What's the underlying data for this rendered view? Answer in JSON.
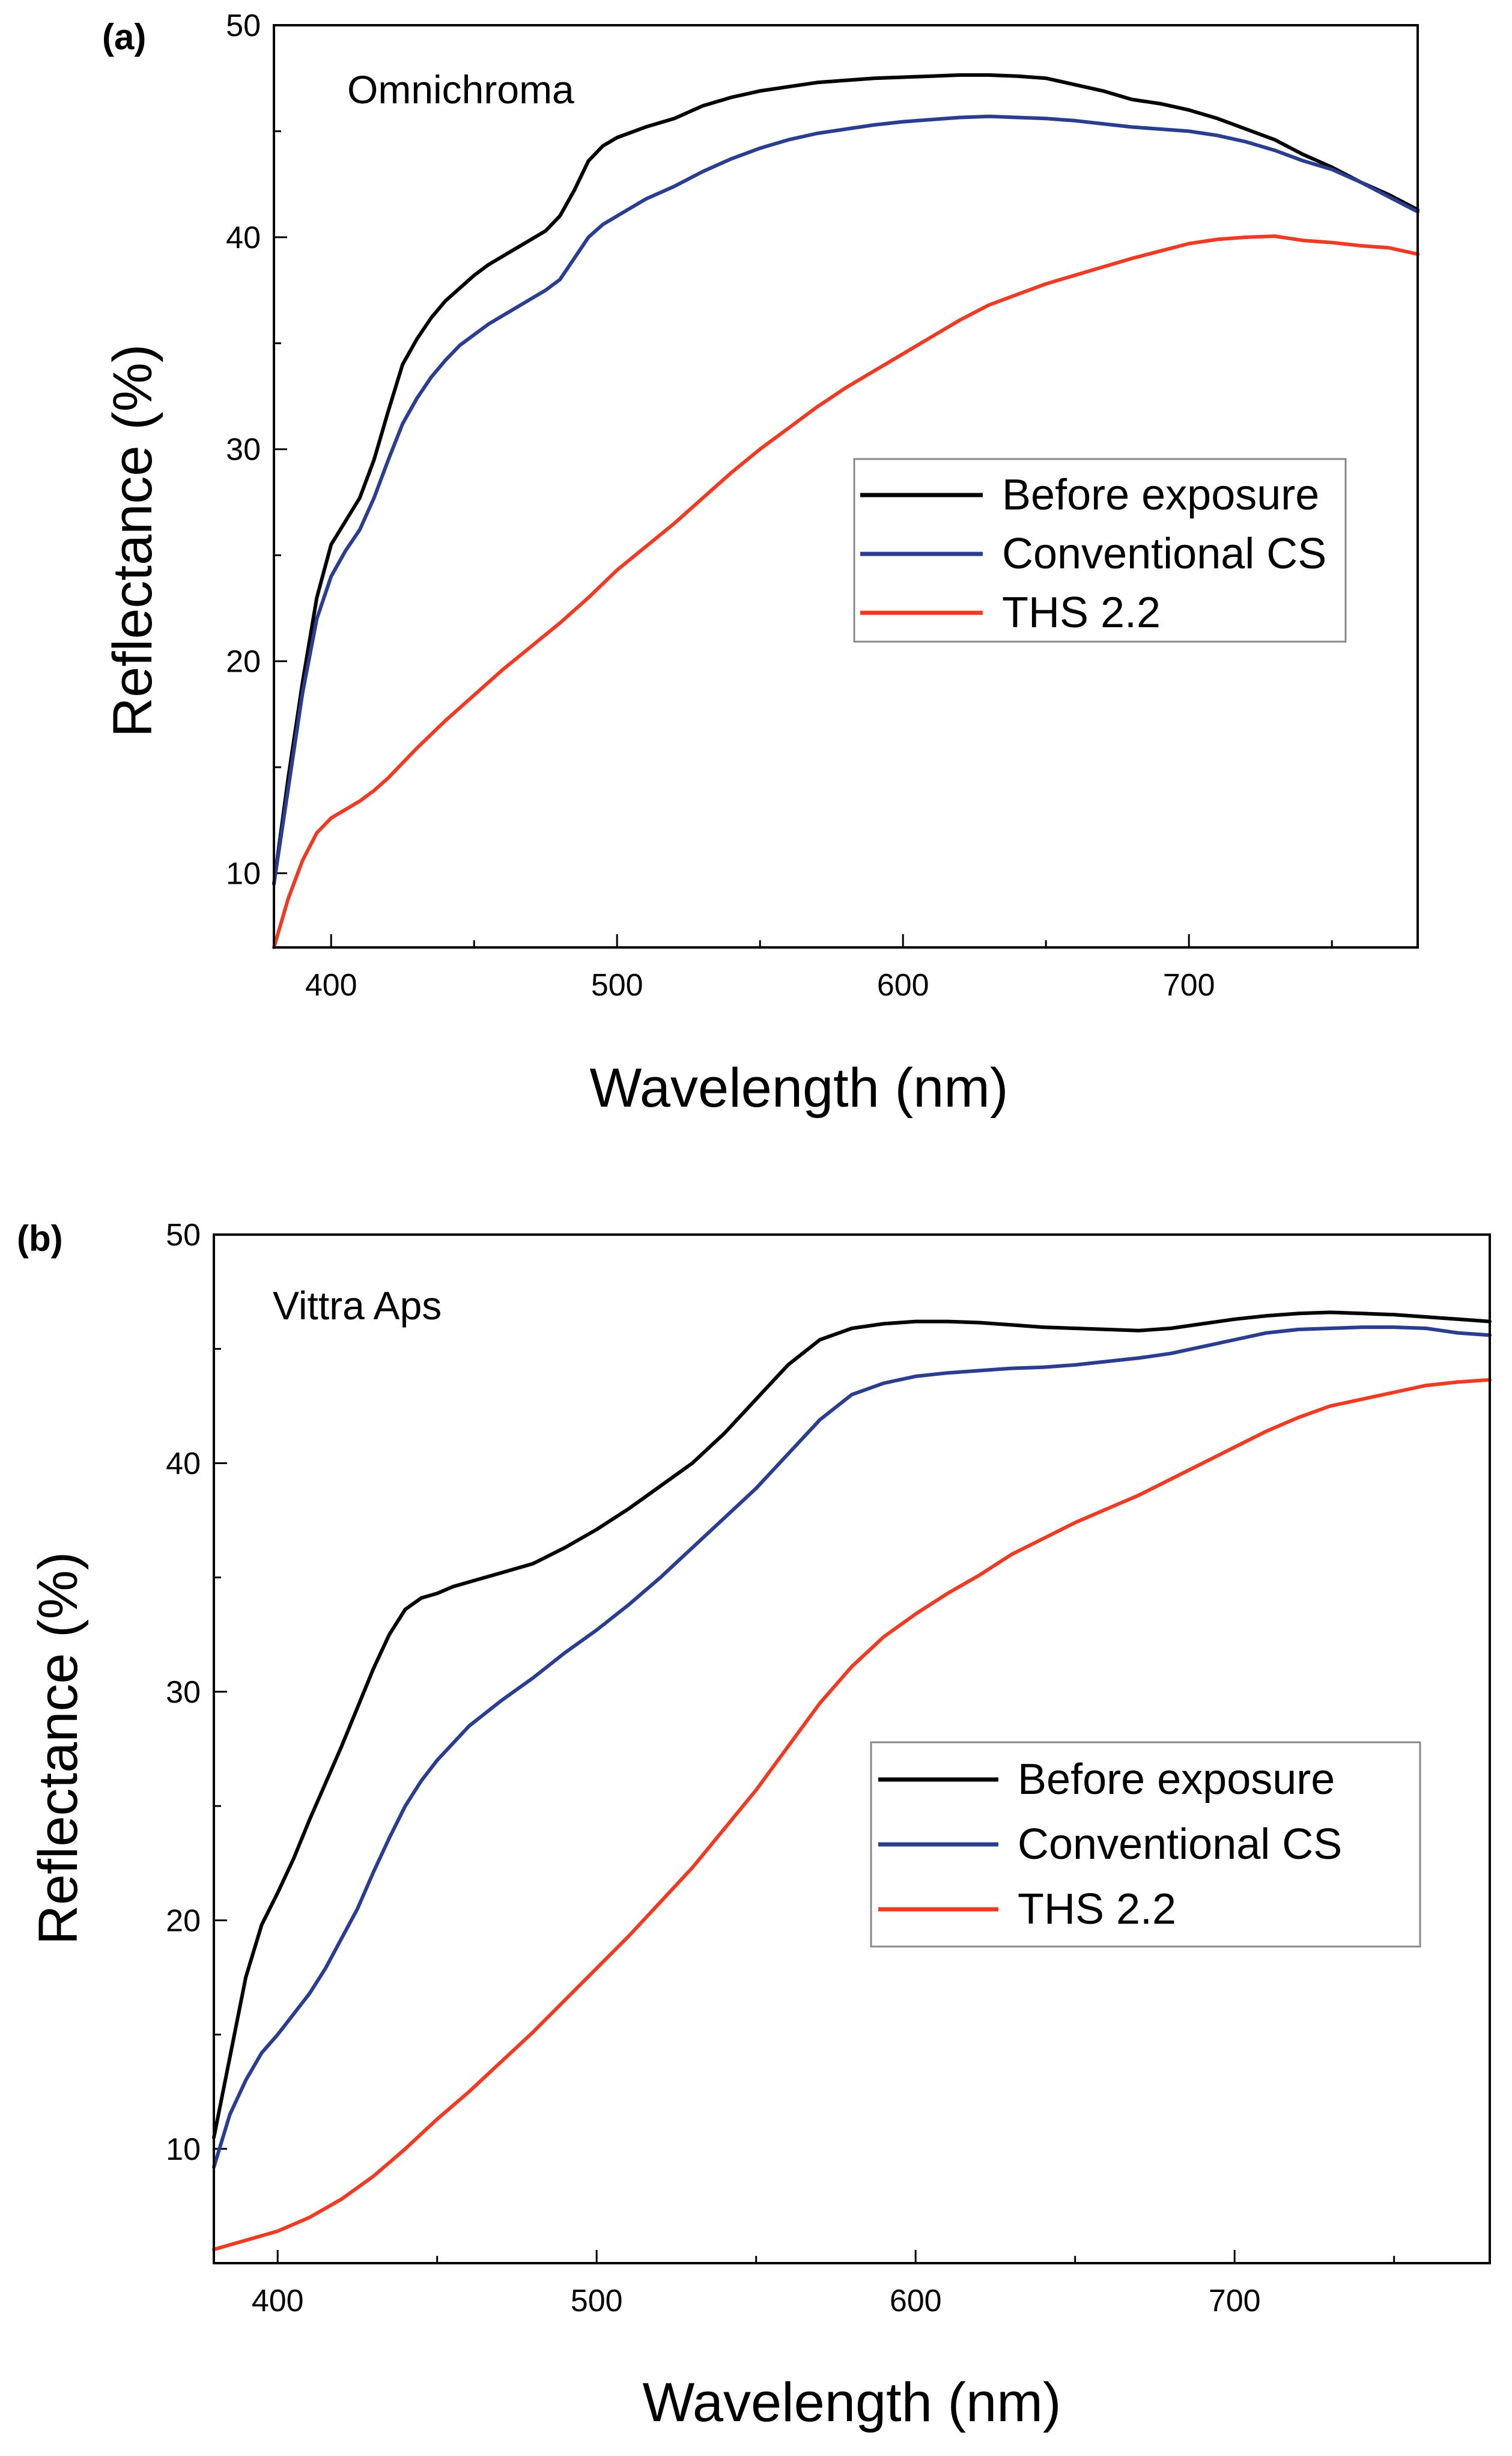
{
  "chart_data": [
    {
      "type": "line",
      "panel_label": "(a)",
      "annotation": "Omnichroma",
      "xlabel": "Wavelength (nm)",
      "ylabel": "Reflectance (%)",
      "xlim": [
        380,
        780
      ],
      "ylim": [
        6.5,
        50
      ],
      "xticks": [
        400,
        500,
        600,
        700
      ],
      "yticks": [
        10,
        20,
        30,
        40,
        50
      ],
      "legend_position": "center-right",
      "series": [
        {
          "name": "Before exposure",
          "color": "#000000",
          "x": [
            380,
            385,
            390,
            395,
            400,
            405,
            410,
            415,
            420,
            425,
            430,
            435,
            440,
            445,
            450,
            455,
            460,
            465,
            470,
            475,
            480,
            485,
            490,
            495,
            500,
            510,
            520,
            530,
            540,
            550,
            560,
            570,
            580,
            590,
            600,
            610,
            620,
            630,
            640,
            650,
            660,
            670,
            680,
            690,
            700,
            710,
            720,
            730,
            740,
            750,
            760,
            770,
            780
          ],
          "y": [
            9.5,
            14.5,
            19,
            23,
            25.5,
            26.6,
            27.7,
            29.5,
            31.8,
            34,
            35.2,
            36.2,
            37,
            37.6,
            38.2,
            38.7,
            39.1,
            39.5,
            39.9,
            40.3,
            41,
            42.2,
            43.6,
            44.3,
            44.7,
            45.2,
            45.6,
            46.2,
            46.6,
            46.9,
            47.1,
            47.3,
            47.4,
            47.5,
            47.55,
            47.6,
            47.65,
            47.65,
            47.6,
            47.5,
            47.2,
            46.9,
            46.5,
            46.3,
            46,
            45.6,
            45.1,
            44.6,
            43.9,
            43.3,
            42.6,
            42,
            41.3
          ]
        },
        {
          "name": "Conventional CS",
          "color": "#2b3d8f",
          "x": [
            380,
            385,
            390,
            395,
            400,
            405,
            410,
            415,
            420,
            425,
            430,
            435,
            440,
            445,
            450,
            455,
            460,
            465,
            470,
            475,
            480,
            485,
            490,
            495,
            500,
            510,
            520,
            530,
            540,
            550,
            560,
            570,
            580,
            590,
            600,
            610,
            620,
            630,
            640,
            650,
            660,
            670,
            680,
            690,
            700,
            710,
            720,
            730,
            740,
            750,
            760,
            770,
            780
          ],
          "y": [
            9.5,
            14,
            18.5,
            22,
            24,
            25.2,
            26.2,
            27.7,
            29.5,
            31.2,
            32.4,
            33.4,
            34.2,
            34.9,
            35.4,
            35.9,
            36.3,
            36.7,
            37.1,
            37.5,
            38,
            39,
            40,
            40.6,
            41,
            41.8,
            42.4,
            43.1,
            43.7,
            44.2,
            44.6,
            44.9,
            45.1,
            45.3,
            45.45,
            45.55,
            45.65,
            45.7,
            45.65,
            45.6,
            45.5,
            45.35,
            45.2,
            45.1,
            45,
            44.8,
            44.5,
            44.1,
            43.6,
            43.2,
            42.6,
            41.9,
            41.2
          ]
        },
        {
          "name": "THS 2.2",
          "color": "#ee3b24",
          "x": [
            380,
            385,
            390,
            395,
            400,
            405,
            410,
            415,
            420,
            430,
            440,
            450,
            460,
            470,
            480,
            490,
            500,
            510,
            520,
            530,
            540,
            550,
            560,
            570,
            580,
            590,
            600,
            610,
            620,
            630,
            640,
            650,
            660,
            670,
            680,
            690,
            700,
            710,
            720,
            730,
            740,
            750,
            760,
            770,
            780
          ],
          "y": [
            6.5,
            8.8,
            10.6,
            11.9,
            12.6,
            13,
            13.4,
            13.9,
            14.5,
            15.9,
            17.2,
            18.4,
            19.6,
            20.7,
            21.8,
            23,
            24.3,
            25.4,
            26.5,
            27.7,
            28.9,
            30,
            31,
            32,
            32.9,
            33.7,
            34.5,
            35.3,
            36.1,
            36.8,
            37.3,
            37.8,
            38.2,
            38.6,
            39,
            39.35,
            39.7,
            39.9,
            40,
            40.05,
            39.85,
            39.75,
            39.6,
            39.5,
            39.2
          ]
        }
      ]
    },
    {
      "type": "line",
      "panel_label": "(b)",
      "annotation": "Vittra Aps",
      "xlabel": "Wavelength (nm)",
      "ylabel": "Reflectance (%)",
      "xlim": [
        380,
        780
      ],
      "ylim": [
        5,
        50
      ],
      "xticks": [
        400,
        500,
        600,
        700
      ],
      "yticks": [
        10,
        20,
        30,
        40,
        50
      ],
      "legend_position": "center-right",
      "series": [
        {
          "name": "Before exposure",
          "color": "#000000",
          "x": [
            380,
            385,
            390,
            395,
            400,
            405,
            410,
            415,
            420,
            425,
            430,
            435,
            440,
            445,
            450,
            455,
            460,
            470,
            480,
            490,
            500,
            510,
            520,
            530,
            540,
            550,
            560,
            570,
            580,
            590,
            600,
            610,
            620,
            630,
            640,
            650,
            660,
            670,
            680,
            690,
            700,
            710,
            720,
            730,
            740,
            750,
            760,
            770,
            780
          ],
          "y": [
            10.5,
            14,
            17.5,
            19.8,
            21.2,
            22.7,
            24.4,
            26,
            27.6,
            29.3,
            31,
            32.5,
            33.6,
            34.1,
            34.3,
            34.6,
            34.8,
            35.2,
            35.6,
            36.3,
            37.1,
            38,
            39,
            40,
            41.3,
            42.8,
            44.3,
            45.4,
            45.9,
            46.1,
            46.2,
            46.2,
            46.15,
            46.05,
            45.95,
            45.9,
            45.85,
            45.8,
            45.9,
            46.1,
            46.3,
            46.45,
            46.55,
            46.6,
            46.55,
            46.5,
            46.4,
            46.3,
            46.2
          ]
        },
        {
          "name": "Conventional CS",
          "color": "#2b3d8f",
          "x": [
            380,
            385,
            390,
            395,
            400,
            405,
            410,
            415,
            420,
            425,
            430,
            435,
            440,
            445,
            450,
            460,
            470,
            480,
            490,
            500,
            510,
            520,
            530,
            540,
            550,
            560,
            570,
            580,
            590,
            600,
            610,
            620,
            630,
            640,
            650,
            660,
            670,
            680,
            690,
            700,
            710,
            720,
            730,
            740,
            750,
            760,
            770,
            780
          ],
          "y": [
            9.2,
            11.5,
            13,
            14.2,
            15,
            15.9,
            16.8,
            17.9,
            19.2,
            20.5,
            22.1,
            23.6,
            25,
            26.1,
            27,
            28.5,
            29.6,
            30.6,
            31.7,
            32.7,
            33.8,
            35,
            36.3,
            37.6,
            38.9,
            40.4,
            41.9,
            43,
            43.5,
            43.8,
            43.95,
            44.05,
            44.15,
            44.2,
            44.3,
            44.45,
            44.6,
            44.8,
            45.1,
            45.4,
            45.7,
            45.85,
            45.9,
            45.95,
            45.95,
            45.9,
            45.7,
            45.6
          ]
        },
        {
          "name": "THS 2.2",
          "color": "#ee3b24",
          "x": [
            380,
            390,
            400,
            410,
            420,
            430,
            440,
            450,
            460,
            470,
            480,
            490,
            500,
            510,
            520,
            530,
            540,
            550,
            560,
            570,
            580,
            590,
            600,
            610,
            620,
            630,
            640,
            650,
            660,
            670,
            680,
            690,
            700,
            710,
            720,
            730,
            740,
            750,
            760,
            770,
            780
          ],
          "y": [
            5.6,
            6,
            6.4,
            7,
            7.8,
            8.8,
            10,
            11.3,
            12.5,
            13.8,
            15.1,
            16.5,
            17.9,
            19.3,
            20.8,
            22.3,
            24,
            25.7,
            27.6,
            29.5,
            31.1,
            32.4,
            33.4,
            34.3,
            35.1,
            36,
            36.7,
            37.4,
            38,
            38.6,
            39.3,
            40,
            40.7,
            41.4,
            42,
            42.5,
            42.8,
            43.1,
            43.4,
            43.55,
            43.65
          ]
        }
      ]
    }
  ]
}
